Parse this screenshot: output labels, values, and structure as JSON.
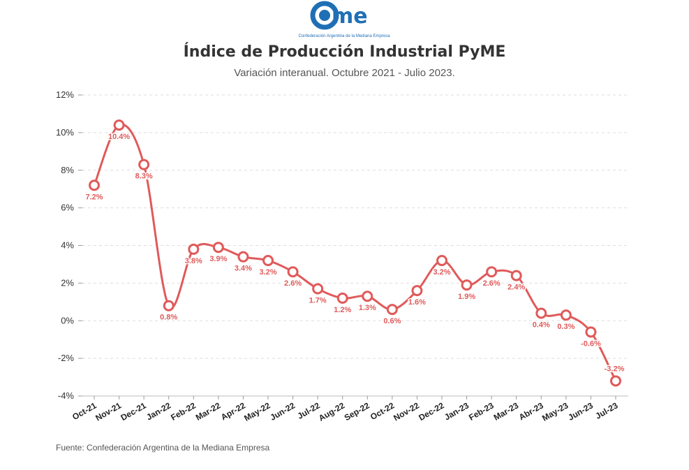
{
  "logo": {
    "wordmark": "came",
    "tagline": "Confederación Argentina de la Mediana Empresa",
    "color": "#1f6fb5"
  },
  "header": {
    "title": "Índice de Producción Industrial PyME",
    "subtitle": "Variación interanual. Octubre 2021 - Julio 2023."
  },
  "footer": {
    "source": "Fuente: Confederación Argentina de la Mediana Empresa"
  },
  "chart_data": {
    "type": "line",
    "title": "Índice de Producción Industrial PyME",
    "subtitle": "Variación interanual. Octubre 2021 - Julio 2023.",
    "xlabel": "",
    "ylabel": "",
    "ylim": [
      -4,
      12
    ],
    "yticks": [
      -4,
      -2,
      0,
      2,
      4,
      6,
      8,
      10,
      12
    ],
    "ytick_suffix": "%",
    "grid": true,
    "line_color": "#e05a5a",
    "categories": [
      "Oct-21",
      "Nov-21",
      "Dec-21",
      "Jan-22",
      "Feb-22",
      "Mar-22",
      "Apr-22",
      "May-22",
      "Jun-22",
      "Jul-22",
      "Aug-22",
      "Sep-22",
      "Oct-22",
      "Nov-22",
      "Dec-22",
      "Jan-23",
      "Feb-23",
      "Mar-23",
      "Abr-23",
      "May-23",
      "Jun-23",
      "Jul-23"
    ],
    "values": [
      7.2,
      10.4,
      8.3,
      0.8,
      3.8,
      3.9,
      3.4,
      3.2,
      2.6,
      1.7,
      1.2,
      1.3,
      0.6,
      1.6,
      3.2,
      1.9,
      2.6,
      2.4,
      0.4,
      0.3,
      -0.6,
      -3.2
    ],
    "labels": [
      "7.2%",
      "10.4%",
      "8.3%",
      "0.8%",
      "3.8%",
      "3.9%",
      "3.4%",
      "3.2%",
      "2.6%",
      "1.7%",
      "1.2%",
      "1.3%",
      "0.6%",
      "1.6%",
      "3.2%",
      "1.9%",
      "2.6%",
      "2.4%",
      "0.4%",
      "0.3%",
      "-0.6%",
      "-3.2%"
    ]
  }
}
